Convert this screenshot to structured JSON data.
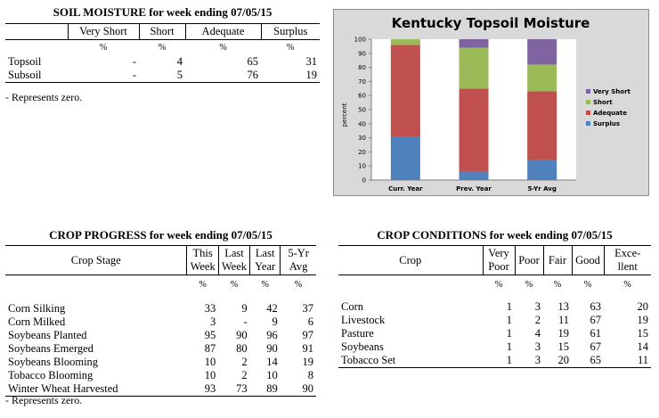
{
  "soil_moisture": {
    "title": "SOIL MOISTURE for week ending 07/05/15",
    "columns": [
      "Very Short",
      "Short",
      "Adequate",
      "Surplus"
    ],
    "unit": "%",
    "rows": [
      {
        "label": "Topsoil",
        "values": [
          "-",
          "4",
          "65",
          "31"
        ]
      },
      {
        "label": "Subsoil",
        "values": [
          "-",
          "5",
          "76",
          "19"
        ]
      }
    ],
    "note": "- Represents zero."
  },
  "chart_data": {
    "type": "bar",
    "stacked": true,
    "title": "Kentucky Topsoil Moisture",
    "ylabel": "percent",
    "xlabel": "",
    "ylim": [
      0,
      100
    ],
    "yticks": [
      0,
      10,
      20,
      30,
      40,
      50,
      60,
      70,
      80,
      90,
      100
    ],
    "categories": [
      "Curr. Year",
      "Prev. Year",
      "5-Yr Avg"
    ],
    "series": [
      {
        "name": "Surplus",
        "color": "#4f81bd",
        "values": [
          31,
          6,
          14
        ]
      },
      {
        "name": "Adequate",
        "color": "#c0504d",
        "values": [
          65,
          59,
          49
        ]
      },
      {
        "name": "Short",
        "color": "#9bbb59",
        "values": [
          4,
          29,
          19
        ]
      },
      {
        "name": "Very Short",
        "color": "#8064a2",
        "values": [
          0,
          6,
          18
        ]
      }
    ],
    "legend_order": [
      "Very Short",
      "Short",
      "Adequate",
      "Surplus"
    ],
    "legend": "right",
    "grid": false
  },
  "crop_progress": {
    "title": "CROP PROGRESS for week ending 07/05/15",
    "stage_header": "Crop Stage",
    "columns": [
      {
        "line1": "This",
        "line2": "Week"
      },
      {
        "line1": "Last",
        "line2": "Week"
      },
      {
        "line1": "Last",
        "line2": "Year"
      },
      {
        "line1": "5-Yr",
        "line2": "Avg"
      }
    ],
    "unit": "%",
    "rows": [
      {
        "label": "Corn Silking",
        "values": [
          "33",
          "9",
          "42",
          "37"
        ]
      },
      {
        "label": "Corn Milked",
        "values": [
          "3",
          "-",
          "9",
          "6"
        ]
      },
      {
        "label": "Soybeans Planted",
        "values": [
          "95",
          "90",
          "96",
          "97"
        ]
      },
      {
        "label": "Soybeans Emerged",
        "values": [
          "87",
          "80",
          "90",
          "91"
        ]
      },
      {
        "label": "Soybeans Blooming",
        "values": [
          "10",
          "2",
          "14",
          "19"
        ]
      },
      {
        "label": "Tobacco Blooming",
        "values": [
          "10",
          "2",
          "10",
          "8"
        ]
      },
      {
        "label": "Winter Wheat Harvested",
        "values": [
          "93",
          "73",
          "89",
          "90"
        ]
      }
    ],
    "note": "- Represents zero."
  },
  "crop_conditions": {
    "title": "CROP CONDITIONS for week ending 07/05/15",
    "crop_header": "Crop",
    "columns": [
      {
        "line1": "Very",
        "line2": "Poor"
      },
      {
        "line1": "Poor",
        "line2": ""
      },
      {
        "line1": "Fair",
        "line2": ""
      },
      {
        "line1": "Good",
        "line2": ""
      },
      {
        "line1": "Exce-",
        "line2": "llent"
      }
    ],
    "unit": "%",
    "rows": [
      {
        "label": "Corn",
        "values": [
          "1",
          "3",
          "13",
          "63",
          "20"
        ]
      },
      {
        "label": "Livestock",
        "values": [
          "1",
          "2",
          "11",
          "67",
          "19"
        ]
      },
      {
        "label": "Pasture",
        "values": [
          "1",
          "4",
          "19",
          "61",
          "15"
        ]
      },
      {
        "label": "Soybeans",
        "values": [
          "1",
          "3",
          "15",
          "67",
          "14"
        ]
      },
      {
        "label": "Tobacco Set",
        "values": [
          "1",
          "3",
          "20",
          "65",
          "11"
        ]
      }
    ]
  }
}
